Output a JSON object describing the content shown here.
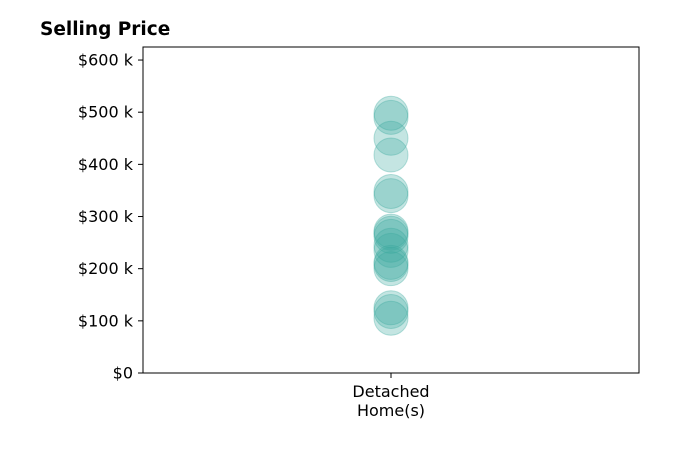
{
  "chart_data": {
    "type": "scatter",
    "title": "Selling Price",
    "xlabel": "",
    "ylabel": "",
    "categories": [
      [
        "Detached",
        "Home(s)"
      ]
    ],
    "ylim": [
      0,
      625000
    ],
    "yticks": [
      {
        "value": 0,
        "label": "$0"
      },
      {
        "value": 100000,
        "label": "$100 k"
      },
      {
        "value": 200000,
        "label": "$200 k"
      },
      {
        "value": 300000,
        "label": "$300 k"
      },
      {
        "value": 400000,
        "label": "$400 k"
      },
      {
        "value": 500000,
        "label": "$500 k"
      },
      {
        "value": 600000,
        "label": "$600 k"
      }
    ],
    "grid": false,
    "legend": "none",
    "series": [
      {
        "category": 0,
        "color": "#3aa99f",
        "values": [
          105000,
          118000,
          125000,
          200000,
          208000,
          212000,
          235000,
          245000,
          262000,
          268000,
          272000,
          340000,
          348000,
          418000,
          450000,
          490000,
          498000
        ]
      }
    ]
  }
}
